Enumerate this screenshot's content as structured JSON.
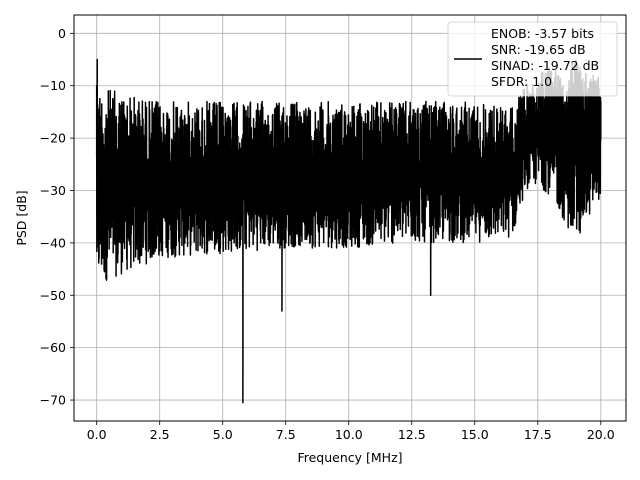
{
  "chart_data": {
    "type": "line",
    "title": "",
    "xlabel": "Frequency [MHz]",
    "ylabel": "PSD [dB]",
    "xlim": [
      -0.9,
      21.0
    ],
    "ylim": [
      -74.0,
      3.5
    ],
    "xticks": [
      0.0,
      2.5,
      5.0,
      7.5,
      10.0,
      12.5,
      15.0,
      17.5,
      20.0
    ],
    "xtick_labels": [
      "0.0",
      "2.5",
      "5.0",
      "7.5",
      "10.0",
      "12.5",
      "15.0",
      "17.5",
      "20.0"
    ],
    "yticks": [
      0,
      -10,
      -20,
      -30,
      -40,
      -50,
      -60,
      -70
    ],
    "ytick_labels": [
      "0",
      "−10",
      "−20",
      "−30",
      "−40",
      "−50",
      "−60",
      "−70"
    ],
    "grid": true,
    "legend_position": "top-right",
    "line_color": "#000000",
    "series": [
      {
        "name": "ENOB: -3.57 bits\nSNR: -19.65 dB\nSINAD: -19.72 dB\nSFDR: 1.0",
        "x": [
          0.0,
          0.02,
          0.05,
          0.1,
          0.2,
          0.4,
          0.6,
          0.8,
          1.0,
          1.5,
          2.0,
          2.5,
          3.0,
          3.5,
          4.0,
          4.5,
          5.0,
          5.5,
          5.76,
          5.8,
          5.84,
          6.0,
          6.5,
          7.0,
          7.3,
          7.35,
          7.4,
          8.0,
          8.5,
          9.0,
          9.5,
          10.0,
          10.5,
          11.0,
          11.5,
          12.0,
          12.5,
          13.0,
          13.2,
          13.25,
          13.3,
          13.5,
          14.0,
          14.5,
          15.0,
          15.5,
          16.0,
          16.5,
          17.0,
          17.5,
          18.0,
          18.5,
          19.0,
          19.2,
          19.4,
          19.6,
          19.8,
          20.0
        ],
        "values": [
          -10.0,
          -5.0,
          -18.0,
          -26.0,
          -30.0,
          -27.0,
          -29.0,
          -28.0,
          -27.0,
          -27.5,
          -27.0,
          -27.0,
          -26.5,
          -26.5,
          -26.0,
          -26.0,
          -26.5,
          -26.0,
          -25.0,
          -70.5,
          -25.0,
          -26.0,
          -25.5,
          -26.0,
          -26.5,
          -53.0,
          -26.0,
          -25.5,
          -26.0,
          -25.5,
          -26.0,
          -26.0,
          -25.5,
          -26.0,
          -26.0,
          -26.5,
          -26.0,
          -25.5,
          -26.0,
          -50.0,
          -25.5,
          -26.0,
          -26.0,
          -25.5,
          -26.0,
          -26.5,
          -26.0,
          -25.0,
          -21.0,
          -19.0,
          -20.0,
          -18.0,
          -17.0,
          -12.0,
          -20.0,
          -18.0,
          -19.0,
          -20.0
        ],
        "fluctuation_envelope": {
          "x": [
            0.0,
            2.5,
            5.0,
            7.5,
            10.0,
            12.5,
            15.0,
            16.5,
            17.0,
            17.5,
            18.0,
            19.0,
            20.0
          ],
          "upper": [
            -10,
            -13,
            -13,
            -13,
            -13,
            -13,
            -13,
            -14,
            -10,
            -8,
            -6,
            -5,
            -8
          ],
          "lower": [
            -48,
            -43,
            -42,
            -41,
            -41,
            -40,
            -40,
            -39,
            -30,
            -29,
            -31,
            -40,
            -31
          ]
        }
      }
    ]
  }
}
